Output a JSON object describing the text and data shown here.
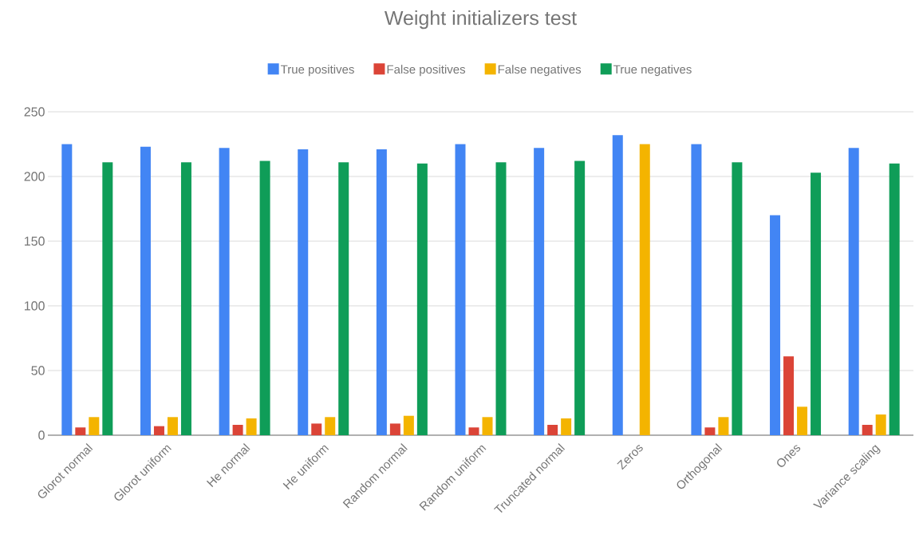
{
  "chart_data": {
    "type": "bar",
    "title": "Weight initializers test",
    "categories": [
      "Glorot normal",
      "Glorot uniform",
      "He normal",
      "He uniform",
      "Random normal",
      "Random uniform",
      "Truncated normal",
      "Zeros",
      "Orthogonal",
      "Ones",
      "Variance scaling"
    ],
    "series": [
      {
        "name": "True positives",
        "color": "#4285f4",
        "values": [
          225,
          223,
          222,
          221,
          221,
          225,
          222,
          232,
          225,
          170,
          222
        ]
      },
      {
        "name": "False positives",
        "color": "#db4437",
        "values": [
          6,
          7,
          8,
          9,
          9,
          6,
          8,
          0,
          6,
          61,
          8
        ]
      },
      {
        "name": "False negatives",
        "color": "#f4b400",
        "values": [
          14,
          14,
          13,
          14,
          15,
          14,
          13,
          225,
          14,
          22,
          16
        ]
      },
      {
        "name": "True negatives",
        "color": "#0f9d58",
        "values": [
          211,
          211,
          212,
          211,
          210,
          211,
          212,
          0,
          211,
          203,
          210
        ]
      }
    ],
    "ylim": [
      0,
      250
    ],
    "yticks": [
      0,
      50,
      100,
      150,
      200,
      250
    ],
    "grid": "y",
    "legend": "top"
  }
}
